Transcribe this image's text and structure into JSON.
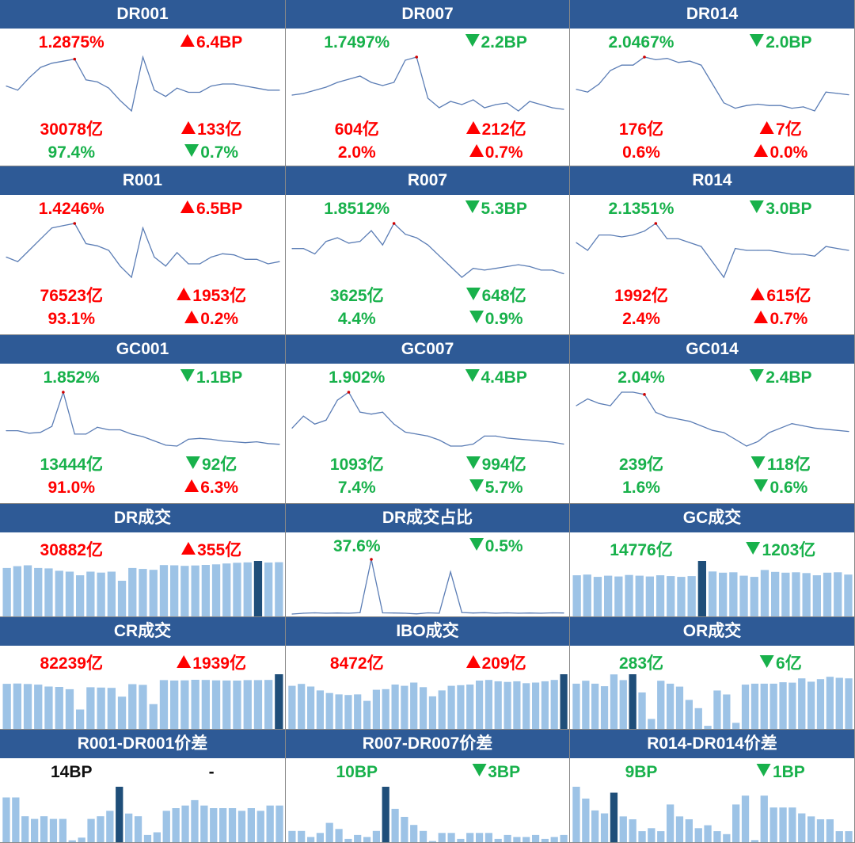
{
  "colors": {
    "header": "#2E5A96",
    "up": "#ff0000",
    "down": "#18b14b",
    "bar": "#9DC3E6",
    "bar_highlight": "#1F4E79",
    "line": "#5B7DB5"
  },
  "panels": [
    {
      "title": "DR001",
      "type": "line",
      "metrics": [
        {
          "text": "1.2875%",
          "dir": "up"
        },
        {
          "text": "6.4BP",
          "dir": "up",
          "arrow": true
        },
        {
          "text": "30078亿",
          "dir": "up"
        },
        {
          "text": "133亿",
          "dir": "up",
          "arrow": true
        },
        {
          "text": "97.4%",
          "dir": "down"
        },
        {
          "text": "0.7%",
          "dir": "down",
          "arrow": true
        }
      ],
      "chart_data": {
        "type": "line",
        "values": [
          1.15,
          1.13,
          1.19,
          1.24,
          1.26,
          1.27,
          1.28,
          1.18,
          1.17,
          1.14,
          1.08,
          1.03,
          1.29,
          1.13,
          1.1,
          1.14,
          1.12,
          1.12,
          1.15,
          1.16,
          1.16,
          1.15,
          1.14,
          1.13,
          1.13
        ],
        "highlight_index": 6
      }
    },
    {
      "title": "DR007",
      "type": "line",
      "metrics": [
        {
          "text": "1.7497%",
          "dir": "down"
        },
        {
          "text": "2.2BP",
          "dir": "down",
          "arrow": true
        },
        {
          "text": "604亿",
          "dir": "up"
        },
        {
          "text": "212亿",
          "dir": "up",
          "arrow": true
        },
        {
          "text": "2.0%",
          "dir": "up"
        },
        {
          "text": "0.7%",
          "dir": "up",
          "arrow": true
        }
      ],
      "chart_data": {
        "type": "line",
        "values": [
          1.66,
          1.665,
          1.675,
          1.685,
          1.7,
          1.71,
          1.72,
          1.7,
          1.69,
          1.7,
          1.77,
          1.78,
          1.65,
          1.62,
          1.64,
          1.63,
          1.645,
          1.62,
          1.63,
          1.635,
          1.61,
          1.64,
          1.63,
          1.62,
          1.615
        ],
        "highlight_index": 11
      }
    },
    {
      "title": "DR014",
      "type": "line",
      "metrics": [
        {
          "text": "2.0467%",
          "dir": "down"
        },
        {
          "text": "2.0BP",
          "dir": "down",
          "arrow": true
        },
        {
          "text": "176亿",
          "dir": "up"
        },
        {
          "text": "7亿",
          "dir": "up",
          "arrow": true
        },
        {
          "text": "0.6%",
          "dir": "up"
        },
        {
          "text": "0.0%",
          "dir": "up",
          "arrow": true
        }
      ],
      "chart_data": {
        "type": "line",
        "values": [
          1.93,
          1.92,
          1.95,
          2.0,
          2.02,
          2.02,
          2.05,
          2.04,
          2.045,
          2.03,
          2.035,
          2.02,
          1.95,
          1.88,
          1.86,
          1.87,
          1.875,
          1.87,
          1.87,
          1.86,
          1.865,
          1.85,
          1.92,
          1.915,
          1.91
        ],
        "highlight_index": 6
      }
    },
    {
      "title": "R001",
      "type": "line",
      "metrics": [
        {
          "text": "1.4246%",
          "dir": "up"
        },
        {
          "text": "6.5BP",
          "dir": "up",
          "arrow": true
        },
        {
          "text": "76523亿",
          "dir": "up"
        },
        {
          "text": "1953亿",
          "dir": "up",
          "arrow": true
        },
        {
          "text": "93.1%",
          "dir": "up"
        },
        {
          "text": "0.2%",
          "dir": "up",
          "arrow": true
        }
      ],
      "chart_data": {
        "type": "line",
        "values": [
          1.27,
          1.25,
          1.3,
          1.35,
          1.4,
          1.41,
          1.42,
          1.33,
          1.32,
          1.3,
          1.23,
          1.18,
          1.4,
          1.27,
          1.23,
          1.29,
          1.24,
          1.24,
          1.27,
          1.285,
          1.28,
          1.26,
          1.26,
          1.24,
          1.25
        ],
        "highlight_index": 6
      }
    },
    {
      "title": "R007",
      "type": "line",
      "metrics": [
        {
          "text": "1.8512%",
          "dir": "down"
        },
        {
          "text": "5.3BP",
          "dir": "down",
          "arrow": true
        },
        {
          "text": "3625亿",
          "dir": "down"
        },
        {
          "text": "648亿",
          "dir": "down",
          "arrow": true
        },
        {
          "text": "4.4%",
          "dir": "down"
        },
        {
          "text": "0.9%",
          "dir": "down",
          "arrow": true
        }
      ],
      "chart_data": {
        "type": "line",
        "values": [
          1.78,
          1.78,
          1.765,
          1.8,
          1.81,
          1.795,
          1.8,
          1.83,
          1.79,
          1.85,
          1.82,
          1.81,
          1.79,
          1.76,
          1.73,
          1.7,
          1.725,
          1.72,
          1.725,
          1.73,
          1.735,
          1.73,
          1.72,
          1.72,
          1.71
        ],
        "highlight_index": 9
      }
    },
    {
      "title": "R014",
      "type": "line",
      "metrics": [
        {
          "text": "2.1351%",
          "dir": "down"
        },
        {
          "text": "3.0BP",
          "dir": "down",
          "arrow": true
        },
        {
          "text": "1992亿",
          "dir": "up"
        },
        {
          "text": "615亿",
          "dir": "up",
          "arrow": true
        },
        {
          "text": "2.4%",
          "dir": "up"
        },
        {
          "text": "0.7%",
          "dir": "up",
          "arrow": true
        }
      ],
      "chart_data": {
        "type": "line",
        "values": [
          2.09,
          2.07,
          2.11,
          2.11,
          2.105,
          2.11,
          2.12,
          2.14,
          2.1,
          2.1,
          2.09,
          2.08,
          2.04,
          2.0,
          2.075,
          2.07,
          2.07,
          2.07,
          2.065,
          2.06,
          2.06,
          2.055,
          2.08,
          2.075,
          2.07
        ],
        "highlight_index": 7
      }
    },
    {
      "title": "GC001",
      "type": "line",
      "metrics": [
        {
          "text": "1.852%",
          "dir": "down"
        },
        {
          "text": "1.1BP",
          "dir": "down",
          "arrow": true
        },
        {
          "text": "13444亿",
          "dir": "down"
        },
        {
          "text": "92亿",
          "dir": "down",
          "arrow": true
        },
        {
          "text": "91.0%",
          "dir": "up"
        },
        {
          "text": "6.3%",
          "dir": "up",
          "arrow": true
        }
      ],
      "chart_data": {
        "type": "line",
        "values": [
          1.4,
          1.4,
          1.37,
          1.38,
          1.45,
          1.85,
          1.36,
          1.36,
          1.44,
          1.41,
          1.41,
          1.36,
          1.33,
          1.28,
          1.23,
          1.22,
          1.3,
          1.31,
          1.3,
          1.28,
          1.27,
          1.26,
          1.27,
          1.25,
          1.24
        ],
        "highlight_index": 5
      }
    },
    {
      "title": "GC007",
      "type": "line",
      "metrics": [
        {
          "text": "1.902%",
          "dir": "down"
        },
        {
          "text": "4.4BP",
          "dir": "down",
          "arrow": true
        },
        {
          "text": "1093亿",
          "dir": "down"
        },
        {
          "text": "994亿",
          "dir": "down",
          "arrow": true
        },
        {
          "text": "7.4%",
          "dir": "down"
        },
        {
          "text": "5.7%",
          "dir": "down",
          "arrow": true
        }
      ],
      "chart_data": {
        "type": "line",
        "values": [
          1.72,
          1.78,
          1.74,
          1.76,
          1.86,
          1.9,
          1.8,
          1.79,
          1.8,
          1.74,
          1.7,
          1.69,
          1.68,
          1.66,
          1.63,
          1.63,
          1.64,
          1.68,
          1.68,
          1.67,
          1.665,
          1.66,
          1.655,
          1.65,
          1.64
        ],
        "highlight_index": 5
      }
    },
    {
      "title": "GC014",
      "type": "line",
      "metrics": [
        {
          "text": "2.04%",
          "dir": "down"
        },
        {
          "text": "2.4BP",
          "dir": "down",
          "arrow": true
        },
        {
          "text": "239亿",
          "dir": "down"
        },
        {
          "text": "118亿",
          "dir": "down",
          "arrow": true
        },
        {
          "text": "1.6%",
          "dir": "down"
        },
        {
          "text": "0.6%",
          "dir": "down",
          "arrow": true
        }
      ],
      "chart_data": {
        "type": "line",
        "values": [
          1.98,
          2.01,
          1.99,
          1.98,
          2.04,
          2.04,
          2.03,
          1.95,
          1.93,
          1.92,
          1.91,
          1.89,
          1.87,
          1.86,
          1.83,
          1.8,
          1.82,
          1.86,
          1.88,
          1.9,
          1.89,
          1.88,
          1.875,
          1.87,
          1.865
        ],
        "highlight_index": 6
      }
    },
    {
      "title": "DR成交",
      "type": "bar",
      "metrics": [
        {
          "text": "30882亿",
          "dir": "up"
        },
        {
          "text": "355亿",
          "dir": "up",
          "arrow": true
        }
      ],
      "chart_data": {
        "type": "bar",
        "values": [
          27000,
          28000,
          28500,
          27000,
          26800,
          25500,
          25000,
          23000,
          25000,
          24500,
          25000,
          20000,
          27000,
          26500,
          26000,
          28600,
          28500,
          28200,
          28400,
          28700,
          29000,
          29500,
          29900,
          30100,
          30882,
          30000,
          30200
        ],
        "highlight_index": 24
      }
    },
    {
      "title": "DR成交占比",
      "type": "line",
      "metrics": [
        {
          "text": "37.6%",
          "dir": "down"
        },
        {
          "text": "0.5%",
          "dir": "down",
          "arrow": true
        }
      ],
      "chart_data": {
        "type": "line",
        "values": [
          4.5,
          5.0,
          5.2,
          5.0,
          5.1,
          5.0,
          5.3,
          37.6,
          5.2,
          5.1,
          5.0,
          4.6,
          5.2,
          5.0,
          30.0,
          5.4,
          5.1,
          5.3,
          5.0,
          5.2,
          5.0,
          5.1,
          5.0,
          5.2,
          5.1
        ],
        "highlight_index": 7
      }
    },
    {
      "title": "GC成交",
      "type": "bar",
      "metrics": [
        {
          "text": "14776亿",
          "dir": "down"
        },
        {
          "text": "1203亿",
          "dir": "down",
          "arrow": true
        }
      ],
      "chart_data": {
        "type": "bar",
        "values": [
          11000,
          11200,
          10600,
          10900,
          10700,
          11100,
          10900,
          10700,
          11000,
          10800,
          10600,
          10800,
          14776,
          12000,
          11700,
          11800,
          10900,
          10600,
          12400,
          11900,
          11700,
          11800,
          11600,
          11000,
          11700,
          11800,
          11200
        ],
        "highlight_index": 12
      }
    },
    {
      "title": "CR成交",
      "type": "bar",
      "metrics": [
        {
          "text": "82239亿",
          "dir": "up"
        },
        {
          "text": "1939亿",
          "dir": "up",
          "arrow": true
        }
      ],
      "chart_data": {
        "type": "bar",
        "values": [
          68000,
          68500,
          67800,
          66800,
          64000,
          63500,
          60000,
          30000,
          63000,
          62500,
          62000,
          49000,
          67500,
          66500,
          38000,
          73500,
          73000,
          73200,
          74000,
          73800,
          73200,
          73000,
          72800,
          73500,
          73600,
          73800,
          82239
        ],
        "highlight_index": 26
      }
    },
    {
      "title": "IBO成交",
      "type": "bar",
      "metrics": [
        {
          "text": "8472亿",
          "dir": "up"
        },
        {
          "text": "209亿",
          "dir": "up",
          "arrow": true
        }
      ],
      "chart_data": {
        "type": "bar",
        "values": [
          6700,
          7000,
          6600,
          6000,
          5600,
          5400,
          5300,
          5400,
          4400,
          6100,
          6200,
          6900,
          6700,
          7200,
          6500,
          5100,
          6000,
          6700,
          6800,
          6900,
          7500,
          7600,
          7400,
          7300,
          7400,
          7100,
          7200,
          7400,
          7600,
          8472
        ],
        "highlight_index": 29
      }
    },
    {
      "title": "OR成交",
      "type": "bar",
      "metrics": [
        {
          "text": "283亿",
          "dir": "down"
        },
        {
          "text": "6亿",
          "dir": "down",
          "arrow": true
        }
      ],
      "chart_data": {
        "type": "bar",
        "values": [
          235,
          250,
          235,
          222,
          282,
          253,
          283,
          190,
          55,
          250,
          235,
          220,
          152,
          110,
          20,
          200,
          180,
          35,
          230,
          235,
          235,
          235,
          242,
          240,
          262,
          245,
          258,
          270,
          265,
          262
        ],
        "highlight_index": 6
      }
    },
    {
      "title": "R001-DR001价差",
      "type": "bar",
      "metrics": [
        {
          "text": "14BP",
          "dir": "neutral"
        },
        {
          "text": "-",
          "dir": "neutral"
        }
      ],
      "chart_data": {
        "type": "bar",
        "values": [
          17,
          17,
          10,
          9,
          10,
          9,
          9,
          1,
          2,
          9,
          10,
          12,
          21,
          11,
          10,
          3,
          4,
          12,
          13,
          14,
          16,
          14,
          13,
          13,
          13,
          12,
          13,
          12,
          14,
          14
        ],
        "highlight_index": 12
      }
    },
    {
      "title": "R007-DR007价差",
      "type": "bar",
      "metrics": [
        {
          "text": "10BP",
          "dir": "down"
        },
        {
          "text": "3BP",
          "dir": "down",
          "arrow": true
        }
      ],
      "chart_data": {
        "type": "bar",
        "values": [
          6,
          6,
          3,
          5,
          10,
          7,
          2,
          4,
          3,
          6,
          28,
          17,
          13,
          9,
          6,
          1,
          5,
          5,
          2,
          5,
          5,
          5,
          2,
          4,
          3,
          3,
          4,
          2,
          3,
          4
        ],
        "highlight_index": 10
      }
    },
    {
      "title": "R014-DR014价差",
      "type": "bar",
      "metrics": [
        {
          "text": "9BP",
          "dir": "down"
        },
        {
          "text": "1BP",
          "dir": "down",
          "arrow": true
        }
      ],
      "chart_data": {
        "type": "bar",
        "values": [
          19,
          15,
          11,
          10,
          17,
          9,
          8,
          4,
          5,
          4,
          13,
          9,
          8,
          5,
          6,
          4,
          3,
          13,
          16,
          1,
          16,
          12,
          12,
          12,
          10,
          9,
          8,
          8,
          4,
          4
        ],
        "highlight_index": 4
      }
    }
  ]
}
